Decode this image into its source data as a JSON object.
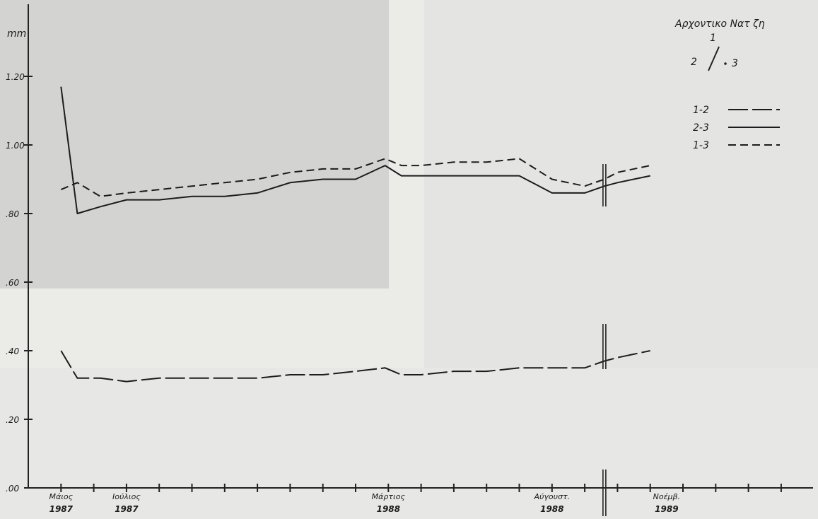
{
  "chart_data": {
    "type": "line",
    "title": "Αρχοντικο Νατ ζη",
    "ylabel": "mm",
    "ylim": [
      0,
      1.3
    ],
    "y_ticks": [
      {
        "value": 1.2,
        "label": "1.20"
      },
      {
        "value": 1.0,
        "label": "1.00"
      },
      {
        "value": 0.8,
        "label": ".80"
      },
      {
        "value": 0.6,
        "label": ".60"
      },
      {
        "value": 0.4,
        "label": ".40"
      },
      {
        "value": 0.2,
        "label": ".20"
      },
      {
        "value": 0.0,
        "label": ".00"
      }
    ],
    "x_tick_count": 24,
    "x_labels": [
      {
        "index": 1,
        "line1": "Μάιος",
        "line2": "1987"
      },
      {
        "index": 3,
        "line1": "Ιούλιος",
        "line2": "1987"
      },
      {
        "index": 11,
        "line1": "Μάρτιος",
        "line2": "1988"
      },
      {
        "index": 16,
        "line1": "Αύγουστ.",
        "line2": "1988"
      },
      {
        "index": 19.5,
        "line1": "Νοέμβ.",
        "line2": "1989"
      }
    ],
    "legend": {
      "placement": "top-right",
      "diagram": {
        "point1": "1",
        "point2": "2",
        "point3": "3"
      },
      "entries": [
        {
          "label": "1-2",
          "style": "long-dash"
        },
        {
          "label": "2-3",
          "style": "solid"
        },
        {
          "label": "1-3",
          "style": "short-dash"
        }
      ]
    },
    "series": [
      {
        "name": "1-2",
        "style": "long-dash",
        "x": [
          1,
          1.5,
          2.2,
          3,
          4,
          5,
          6,
          7,
          8,
          9,
          10,
          10.9,
          11.4,
          12,
          13,
          14,
          15,
          16,
          17,
          17.6,
          18,
          19
        ],
        "y": [
          0.4,
          0.32,
          0.32,
          0.31,
          0.32,
          0.32,
          0.32,
          0.32,
          0.33,
          0.33,
          0.34,
          0.35,
          0.33,
          0.33,
          0.34,
          0.34,
          0.35,
          0.35,
          0.35,
          0.37,
          0.38,
          0.4
        ]
      },
      {
        "name": "2-3",
        "style": "solid",
        "x": [
          1,
          1.5,
          2.2,
          3,
          4,
          5,
          6,
          7,
          8,
          9,
          10,
          10.9,
          11.4,
          12,
          13,
          14,
          15,
          16,
          17,
          17.6,
          18,
          19
        ],
        "y": [
          1.17,
          0.8,
          0.82,
          0.84,
          0.84,
          0.85,
          0.85,
          0.86,
          0.89,
          0.9,
          0.9,
          0.94,
          0.91,
          0.91,
          0.91,
          0.91,
          0.91,
          0.86,
          0.86,
          0.88,
          0.89,
          0.91
        ]
      },
      {
        "name": "1-3",
        "style": "short-dash",
        "x": [
          1,
          1.5,
          2.2,
          3,
          4,
          5,
          6,
          7,
          8,
          9,
          10,
          10.9,
          11.4,
          12,
          13,
          14,
          15,
          16,
          17,
          17.6,
          18,
          19
        ],
        "y": [
          0.87,
          0.89,
          0.85,
          0.86,
          0.87,
          0.88,
          0.89,
          0.9,
          0.92,
          0.93,
          0.93,
          0.96,
          0.94,
          0.94,
          0.95,
          0.95,
          0.96,
          0.9,
          0.88,
          0.9,
          0.92,
          0.94
        ]
      }
    ],
    "break_marks": [
      {
        "x": 17.6
      }
    ],
    "grid": false
  }
}
